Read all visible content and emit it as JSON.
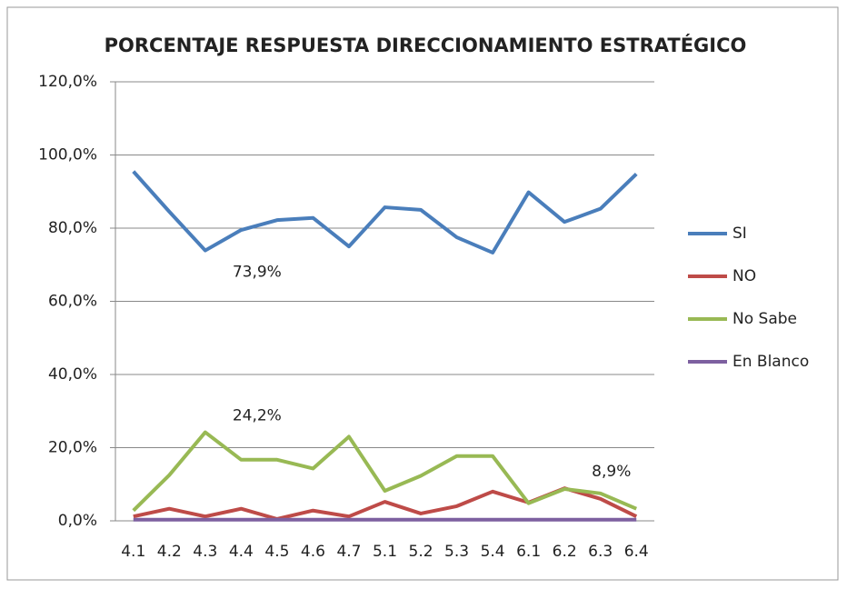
{
  "chart_data": {
    "type": "line",
    "title": "PORCENTAJE RESPUESTA DIRECCIONAMIENTO ESTRATÉGICO",
    "categories": [
      "4.1",
      "4.2",
      "4.3",
      "4.4",
      "4.5",
      "4.6",
      "4.7",
      "5.1",
      "5.2",
      "5.3",
      "5.4",
      "6.1",
      "6.2",
      "6.3",
      "6.4"
    ],
    "series": [
      {
        "name": "SI",
        "color": "#4a7ebb",
        "values": [
          95.5,
          84.5,
          73.9,
          79.5,
          82.2,
          82.8,
          75,
          85.7,
          85,
          77.5,
          73.3,
          89.8,
          81.7,
          85.3,
          94.8
        ],
        "value_labels": [
          null,
          null,
          "73,9%",
          null,
          null,
          null,
          null,
          null,
          null,
          null,
          null,
          null,
          null,
          null,
          null
        ]
      },
      {
        "name": "NO",
        "color": "#be4b48",
        "values": [
          1.2,
          3.3,
          1.2,
          3.3,
          0.5,
          2.8,
          1.2,
          5.2,
          2,
          4,
          8,
          5,
          8.9,
          6,
          1.2
        ],
        "value_labels": [
          null,
          null,
          null,
          null,
          null,
          null,
          null,
          null,
          null,
          null,
          null,
          null,
          "8,9%",
          null,
          null
        ]
      },
      {
        "name": "No Sabe",
        "color": "#98b954",
        "values": [
          2.8,
          12.5,
          24.2,
          16.7,
          16.7,
          14.3,
          23,
          8.2,
          12.3,
          17.7,
          17.7,
          4.8,
          8.7,
          7.5,
          3.3
        ],
        "value_labels": [
          null,
          null,
          "24,2%",
          null,
          null,
          null,
          null,
          null,
          null,
          null,
          null,
          null,
          null,
          null,
          null
        ]
      },
      {
        "name": "En Blanco",
        "color": "#7d60a0",
        "values": [
          0.3,
          0.3,
          0.3,
          0.3,
          0.3,
          0.3,
          0.3,
          0.3,
          0.3,
          0.3,
          0.3,
          0.3,
          0.3,
          0.3,
          0.3
        ]
      }
    ],
    "ylim": [
      0,
      120
    ],
    "yticks": [
      {
        "value": 0,
        "label": "0,0%"
      },
      {
        "value": 20,
        "label": "20,0%"
      },
      {
        "value": 40,
        "label": "40,0%"
      },
      {
        "value": 60,
        "label": "60,0%"
      },
      {
        "value": 80,
        "label": "80,0%"
      },
      {
        "value": 100,
        "label": "100,0%"
      },
      {
        "value": 120,
        "label": "120,0%"
      }
    ],
    "grid": true,
    "legend": "right"
  }
}
